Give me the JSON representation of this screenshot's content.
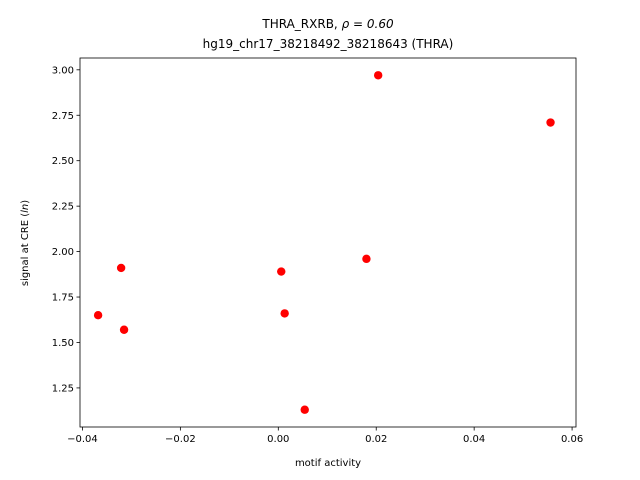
{
  "chart_data": {
    "type": "scatter",
    "title_line1_prefix": "THRA_RXRB, ",
    "title_line1_rho": "ρ = 0.60",
    "title_line2": "hg19_chr17_38218492_38218643 (THRA)",
    "xlabel": "motif activity",
    "ylabel_prefix": "signal at CRE (",
    "ylabel_italic": "ln",
    "ylabel_suffix": ")",
    "xlim": [
      -0.0405,
      0.0608
    ],
    "ylim": [
      1.035,
      3.065
    ],
    "x_ticks": [
      -0.04,
      -0.02,
      0.0,
      0.02,
      0.04,
      0.06
    ],
    "x_tick_labels": [
      "−0.04",
      "−0.02",
      "0.00",
      "0.02",
      "0.04",
      "0.06"
    ],
    "y_ticks": [
      1.25,
      1.5,
      1.75,
      2.0,
      2.25,
      2.5,
      2.75,
      3.0
    ],
    "y_tick_labels": [
      "1.25",
      "1.50",
      "1.75",
      "2.00",
      "2.25",
      "2.50",
      "2.75",
      "3.00"
    ],
    "grid": false,
    "marker_color": "#ff0000",
    "points": [
      {
        "x": -0.0368,
        "y": 1.65
      },
      {
        "x": -0.0321,
        "y": 1.91
      },
      {
        "x": -0.0315,
        "y": 1.57
      },
      {
        "x": 0.0006,
        "y": 1.89
      },
      {
        "x": 0.0013,
        "y": 1.66
      },
      {
        "x": 0.0054,
        "y": 1.13
      },
      {
        "x": 0.018,
        "y": 1.96
      },
      {
        "x": 0.0204,
        "y": 2.97
      },
      {
        "x": 0.0556,
        "y": 2.71
      }
    ]
  }
}
